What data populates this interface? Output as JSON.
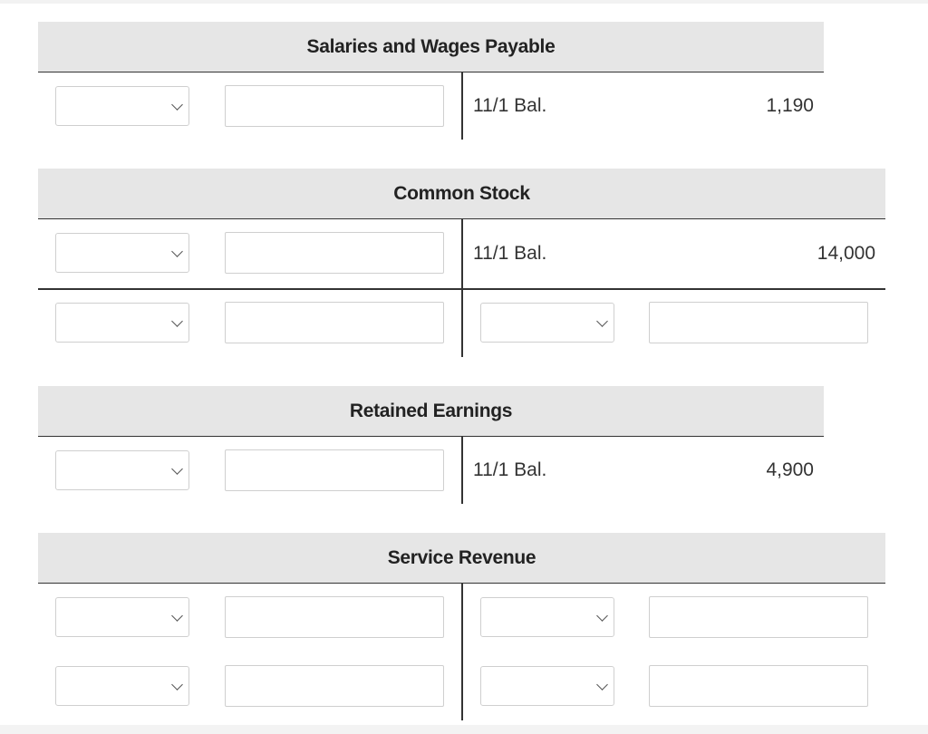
{
  "accounts": {
    "salaries_wages_payable": {
      "title": "Salaries and Wages Payable",
      "credit_label": "11/1 Bal.",
      "credit_amount": "1,190"
    },
    "common_stock": {
      "title": "Common Stock",
      "credit_label": "11/1 Bal.",
      "credit_amount": "14,000"
    },
    "retained_earnings": {
      "title": "Retained Earnings",
      "credit_label": "11/1 Bal.",
      "credit_amount": "4,900"
    },
    "service_revenue": {
      "title": "Service Revenue"
    }
  },
  "icons": {
    "dropdown": "chevron-down-icon"
  },
  "colors": {
    "header_bg": "#e6e6e6",
    "rule": "#333333",
    "field_border": "#cfcfcf"
  }
}
